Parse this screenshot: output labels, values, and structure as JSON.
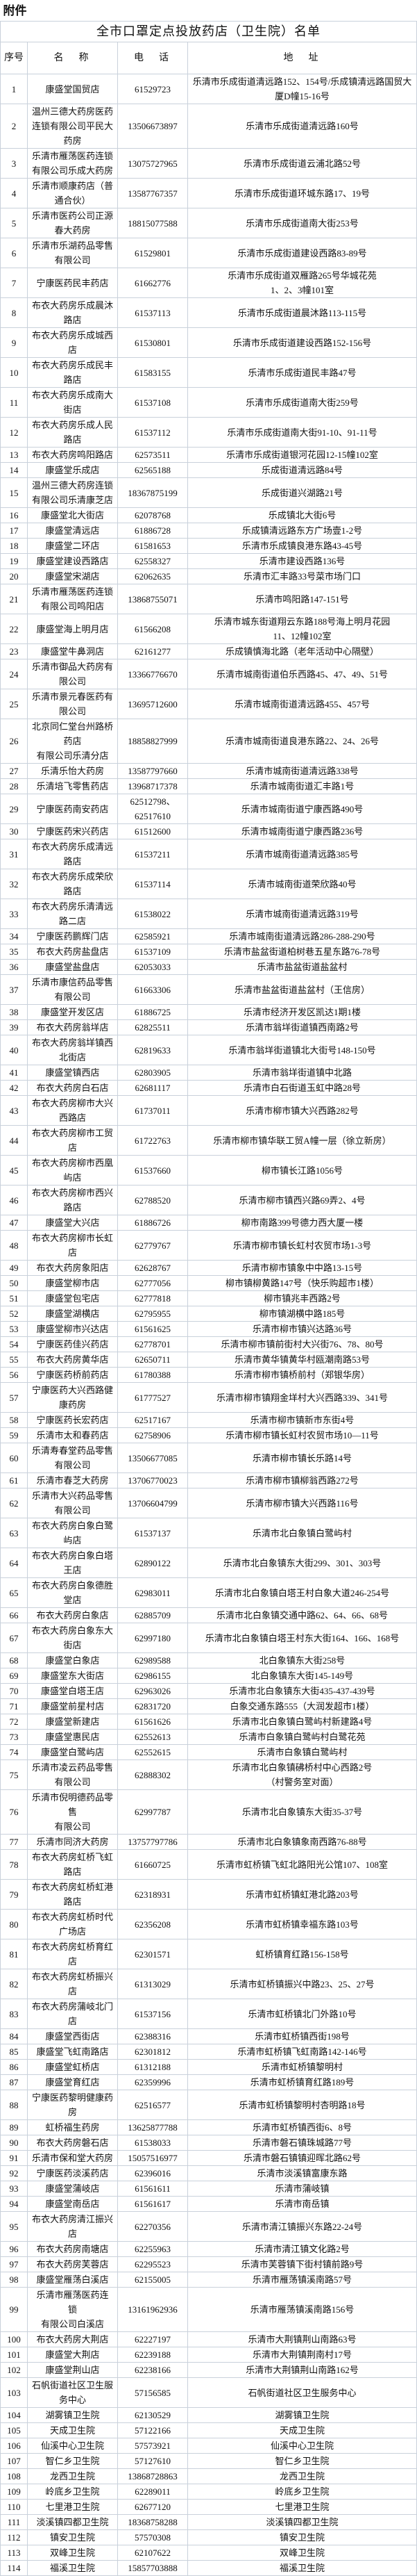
{
  "attachment_label": "附件",
  "title": "全市口罩定点投放药店（卫生院）名单",
  "headers": {
    "no": "序号",
    "name": "名　称",
    "phone": "电　话",
    "address": "地　址"
  },
  "rows": [
    [
      "1",
      "康盛堂国贸店",
      "61529723",
      "乐清市乐成街道清远路152、154号/乐成镇清远路国贸大厦D幢15-16号"
    ],
    [
      "2",
      "温州三德大药房医药连锁有限公司平民大药房",
      "13506673897",
      "乐清市乐成街道清远路160号"
    ],
    [
      "3",
      "乐清市雁荡医药连锁有限公司乐成大药房",
      "13075727965",
      "乐清市乐成街道云浦北路52号"
    ],
    [
      "4",
      "乐清市顺康药店（普通合伙）",
      "13587767357",
      "乐清市乐成街道环城东路17、19号"
    ],
    [
      "5",
      "乐清市医药公司正源春大药房",
      "18815077588",
      "乐清市乐成街道南大街253号"
    ],
    [
      "6",
      "乐清市乐湖药品零售有限公司",
      "61529801",
      "乐清市乐成街道建设西路83-89号"
    ],
    [
      "7",
      "宁康医药民丰药店",
      "61662776",
      "乐清市乐成街道双雁路265号华城花苑\n1、2、3幢101室"
    ],
    [
      "8",
      "布衣大药房乐成晨沐路店",
      "61537113",
      "乐清市乐成街道晨沐路113-115号"
    ],
    [
      "9",
      "布衣大药房乐成城西店",
      "61530801",
      "乐清市乐成街道建设西路152-156号"
    ],
    [
      "10",
      "布衣大药房乐成民丰路店",
      "61583155",
      "乐清市乐成街道民丰路47号"
    ],
    [
      "11",
      "布衣大药房乐成南大街店",
      "61537108",
      "乐清市乐成街道南大街259号"
    ],
    [
      "12",
      "布衣大药房乐成人民路店",
      "61537112",
      "乐清市乐成街道南大街91-10、91-11号"
    ],
    [
      "13",
      "布衣大药房鸣阳路店",
      "62573511",
      "乐清市乐成街道银河花园12-15幢102室"
    ],
    [
      "14",
      "康盛堂乐成店",
      "62565188",
      "乐成街道清远路84号"
    ],
    [
      "15",
      "温州三德大药房连锁有限公司乐清康芝店",
      "18367875199",
      "乐成街道兴湖路21号"
    ],
    [
      "16",
      "康盛堂北大街店",
      "62078768",
      "乐成镇北大街6号"
    ],
    [
      "17",
      "康盛堂清远店",
      "61886728",
      "乐成镇清远路东方广场壹1-2号"
    ],
    [
      "18",
      "康盛堂二环店",
      "61581653",
      "乐清市乐成镇良港东路43-45号"
    ],
    [
      "19",
      "康盛堂建设西路店",
      "62558327",
      "乐清市建设西路136号"
    ],
    [
      "20",
      "康盛堂宋湖店",
      "62062635",
      "乐清市汇丰路33号菜市场门口"
    ],
    [
      "21",
      "乐清市雁荡医药连锁有限公司鸣阳店",
      "13868755071",
      "乐清市鸣阳路147-151号"
    ],
    [
      "22",
      "康盛堂海上明月店",
      "61566208",
      "乐清市城东街道翔云东路188号海上明月花园\n11、12幢102室"
    ],
    [
      "23",
      "康盛堂牛鼻洞店",
      "62161277",
      "乐成镇慎海北路（老年活动中心隔壁）"
    ],
    [
      "24",
      "乐清市御品大药房有限公司",
      "13366776670",
      "乐清市城南街道伯乐西路45、47、49、51号"
    ],
    [
      "25",
      "乐清市景元春医药有限公司",
      "13695712600",
      "乐清市城南街道清远路455、457号"
    ],
    [
      "26",
      "北京同仁堂台州路桥药店\n有限公司乐清分店",
      "18858827999",
      "乐清市城南街道良港东路22、24、26号"
    ],
    [
      "27",
      "乐清乐怡大药房",
      "13587797660",
      "乐清市城南街道清远路338号"
    ],
    [
      "28",
      "乐清培飞零售药店",
      "13968717378",
      "乐清市城南街道汇丰路1号"
    ],
    [
      "29",
      "宁康医药南安药店",
      "62512798、\n62517610",
      "乐清市城南街道宁康西路490号"
    ],
    [
      "30",
      "宁康医药宋兴药店",
      "61512600",
      "乐清市城南街道宁康西路236号"
    ],
    [
      "31",
      "布衣大药房乐成清远路店",
      "61537211",
      "乐清市城南街道清远路385号"
    ],
    [
      "32",
      "布衣大药房乐成荣欣路店",
      "61537114",
      "乐清市城南街道荣欣路40号"
    ],
    [
      "33",
      "布衣大药房乐清清远路二店",
      "61538022",
      "乐清市城南街道清远路319号"
    ],
    [
      "34",
      "宁康医药鹏辉门店",
      "62585921",
      "乐清市城南街道清远路286-288-290号"
    ],
    [
      "35",
      "布衣大药房盐盘店",
      "61537109",
      "乐清市盐盆街道柏树巷五星东路76-78号"
    ],
    [
      "36",
      "康盛堂盐盘店",
      "62053033",
      "乐清市盐盆街道盐盆村"
    ],
    [
      "37",
      "乐清市康信药品零售有限公司",
      "61663306",
      "乐清市盐盆街道盐盆村（王信房）"
    ],
    [
      "38",
      "康盛堂开发区店",
      "61886725",
      "乐清市经济开发区凯达1期1楼"
    ],
    [
      "39",
      "布衣大药房翁垟店",
      "62825511",
      "乐清市翁垟街道镇西南路2号"
    ],
    [
      "40",
      "布衣大药房翁垟镇西北街店",
      "62819633",
      "乐清市翁垟街道镇北大街号148-150号"
    ],
    [
      "41",
      "康盛堂镇西店",
      "62803905",
      "乐清市翁垟街道镇中北路"
    ],
    [
      "42",
      "布衣大药房白石店",
      "62681117",
      "乐清市白石街道玉虹中路28号"
    ],
    [
      "43",
      "布衣大药房柳市大兴西路店",
      "61737011",
      "乐清市柳市镇大兴西路282号"
    ],
    [
      "44",
      "布衣大药房柳市工贸店",
      "61722763",
      "乐清市柳市镇华联工贸A幢一层（徐立新房）"
    ],
    [
      "45",
      "布衣大药房柳市西凰屿店",
      "61537660",
      "柳市镇长江路1056号"
    ],
    [
      "46",
      "布衣大药房柳市西兴路店",
      "62788520",
      "乐清市柳市镇西兴路69弄2、4号"
    ],
    [
      "47",
      "康盛堂大兴店",
      "61886726",
      "柳市南路399号德力西大厦一楼"
    ],
    [
      "48",
      "布衣大药房柳市长虹店",
      "62779767",
      "乐清市柳市镇长虹村农贸市场1-3号"
    ],
    [
      "49",
      "布衣大药房象阳店",
      "62628767",
      "乐清市柳市镇象中中路13-15号"
    ],
    [
      "50",
      "康盛堂柳市店",
      "62777056",
      "柳市镇柳黄路147号（快乐购超市1楼）"
    ],
    [
      "51",
      "康盛堂包宅店",
      "62777818",
      "柳市镇兆丰西路2号"
    ],
    [
      "52",
      "康盛堂湖横店",
      "62795955",
      "柳市镇湖横中路185号"
    ],
    [
      "53",
      "康盛堂柳市兴达店",
      "61561625",
      "乐清市柳市镇兴达路36号"
    ],
    [
      "54",
      "宁康医药佳兴药店",
      "62778701",
      "乐清市柳市镇前街村大兴街76、78、80号"
    ],
    [
      "55",
      "布衣大药房黄华店",
      "62650711",
      "乐清市黄华镇黄华村瓯潮南路53号"
    ],
    [
      "56",
      "宁康医药桥前药店",
      "61780388",
      "乐清市柳市镇桥前村（郑银华房）"
    ],
    [
      "57",
      "宁康医药大兴西路健康药房",
      "61777527",
      "乐清市柳市镇翔金垟村大兴西路339、341号"
    ],
    [
      "58",
      "宁康医药长宏药店",
      "62517167",
      "乐清市柳市镇新市东街4号"
    ],
    [
      "59",
      "乐清市太和春药店",
      "62758906",
      "乐清市柳市镇长虹村农贸市场10—11号"
    ],
    [
      "60",
      "乐清寿春堂药品零售有限公司",
      "13506677085",
      "乐清市柳市镇长乐路14号"
    ],
    [
      "61",
      "乐清市春芝大药房",
      "13706770023",
      "乐清市柳市镇柳翁西路272号"
    ],
    [
      "62",
      "乐清市大兴药品零售有限公司",
      "13706604799",
      "乐清市柳市镇大兴西路116号"
    ],
    [
      "63",
      "布衣大药房白象白鹭屿店",
      "61537137",
      "乐清市北白象镇白鹭屿村"
    ],
    [
      "64",
      "布衣大药房白象白塔王店",
      "62890122",
      "乐清市北白象镇东大街299、301、303号"
    ],
    [
      "65",
      "布衣大药房白象德胜堂店",
      "62983011",
      "乐清市北白象镇白塔王村白象大道246-254号"
    ],
    [
      "66",
      "布衣大药房白象店",
      "62885709",
      "乐清市北白象镇交通中路62、64、66、68号"
    ],
    [
      "67",
      "布衣大药房白象东大街店",
      "62997180",
      "乐清市北白象镇白塔王村东大街164、166、168号"
    ],
    [
      "68",
      "康盛堂白象店",
      "62989588",
      "北白象镇东大街258号"
    ],
    [
      "69",
      "康盛堂东大街店",
      "62986155",
      "北白象镇东大街145-149号"
    ],
    [
      "70",
      "康盛堂白塔王店",
      "62963026",
      "乐清市北白象镇东大街435-437-439号"
    ],
    [
      "71",
      "康盛堂前星村店",
      "62831720",
      "白象交通东路555（大润发超市1楼）"
    ],
    [
      "72",
      "康盛堂新建店",
      "61561626",
      "乐清市北白象镇白鹭屿村新建路4号"
    ],
    [
      "73",
      "康盛堂惠民店",
      "62552613",
      "乐清市白象镇白鹭屿村白鹭花苑"
    ],
    [
      "74",
      "康盛堂白鹭屿店",
      "62552615",
      "乐清市白象镇白鹭屿村"
    ],
    [
      "75",
      "乐清市凌云药品零售有限公司",
      "62888302",
      "乐清市北白象镇砩桥村中心西路2号\n（村警务室对面）"
    ],
    [
      "76",
      "乐清市倪明德药品零售\n有限公司",
      "62997787",
      "乐清市北白象镇东大街35-37号"
    ],
    [
      "77",
      "乐清市同济大药房",
      "13757797786",
      "乐清市北白象镇象南西路76-88号"
    ],
    [
      "78",
      "布衣大药房虹桥飞虹路店",
      "61660725",
      "乐清市虹桥镇飞虹北路阳光公馆107、108室"
    ],
    [
      "79",
      "布衣大药房虹桥虹港路店",
      "62318931",
      "乐清市虹桥镇虹港北路203号"
    ],
    [
      "80",
      "布衣大药房虹桥时代广场店",
      "62356208",
      "乐清市虹桥镇幸福东路103号"
    ],
    [
      "81",
      "布衣大药房虹桥育红店",
      "62301571",
      "虹桥镇育红路156-158号"
    ],
    [
      "82",
      "布衣大药房虹桥振兴店",
      "61313029",
      "乐清市虹桥镇振兴中路23、25、27号"
    ],
    [
      "83",
      "布衣大药房蒲岐北门店",
      "61537156",
      "乐清市虹桥镇北门外路10号"
    ],
    [
      "84",
      "康盛堂西街店",
      "62388316",
      "乐清市虹桥镇西街198号"
    ],
    [
      "85",
      "康盛堂飞虹南路店",
      "62301812",
      "乐清市虹桥镇飞虹南路142-146号"
    ],
    [
      "86",
      "康盛堂虹桥店",
      "61312188",
      "乐清市虹桥镇黎明村"
    ],
    [
      "87",
      "康盛堂育红店",
      "62359996",
      "乐清市虹桥镇育红路189号"
    ],
    [
      "88",
      "宁康医药黎明健康药房",
      "62516577",
      "乐清市虹桥镇黎明村杏明路18号"
    ],
    [
      "89",
      "虹桥福生药房",
      "13625877788",
      "乐清市虹桥镇西街6、8号"
    ],
    [
      "90",
      "布衣大药房磐石店",
      "61538033",
      "乐清市磐石镇珠城路77号"
    ],
    [
      "91",
      "乐清市保和堂大药房",
      "15057516977",
      "乐清市磐石镇镇迎晖北路62号"
    ],
    [
      "92",
      "宁康医药淡溪药店",
      "62396016",
      "乐清市淡溪镇富康东路"
    ],
    [
      "93",
      "康盛堂蒲岐店",
      "61561611",
      "乐清市蒲岐镇"
    ],
    [
      "94",
      "康盛堂南岳店",
      "61561617",
      "乐清市南岳镇"
    ],
    [
      "95",
      "布衣大药房清江振兴店",
      "62270356",
      "乐清市清江镇振兴东路22-24号"
    ],
    [
      "96",
      "布衣大药房南塘店",
      "62255963",
      "乐清市清江镇文化路2号"
    ],
    [
      "97",
      "布衣大药房芙蓉店",
      "62295523",
      "乐清市芙蓉镇下街村镇前路9号"
    ],
    [
      "98",
      "康盛堂雁荡白溪店",
      "62155005",
      "乐清市雁荡镇溪南路57号"
    ],
    [
      "99",
      "乐清市雁荡医药连\n锁\n有限公司白溪店",
      "13161962936",
      "乐清市雁荡镇溪南路156号"
    ],
    [
      "100",
      "布衣大药房大荆店",
      "62227197",
      "乐清市大荆镇荆山南路63号"
    ],
    [
      "101",
      "康盛堂大荆店",
      "62239188",
      "乐清市大荆镇荆南村17号"
    ],
    [
      "102",
      "康盛堂荆山店",
      "62238166",
      "乐清市大荆镇荆山南路162号"
    ],
    [
      "103",
      "石帆街道社区卫生服务中心",
      "57156585",
      "石帆街道社区卫生服务中心"
    ],
    [
      "104",
      "湖雾镇卫生院",
      "62130529",
      "湖雾镇卫生院"
    ],
    [
      "105",
      "天成卫生院",
      "57122166",
      "天成卫生院"
    ],
    [
      "106",
      "仙溪中心卫生院",
      "57573921",
      "仙溪中心卫生院"
    ],
    [
      "107",
      "智仁乡卫生院",
      "57127610",
      "智仁乡卫生院"
    ],
    [
      "108",
      "龙西卫生院",
      "13868728863",
      "龙西卫生院"
    ],
    [
      "109",
      "岭底乡卫生院",
      "62289011",
      "岭底乡卫生院"
    ],
    [
      "110",
      "七里港卫生院",
      "62677120",
      "七里港卫生院"
    ],
    [
      "111",
      "淡溪镇四都卫生院",
      "18368758288",
      "淡溪镇四都卫生院"
    ],
    [
      "112",
      "镇安卫生院",
      "57570308",
      "镇安卫生院"
    ],
    [
      "113",
      "双峰卫生院",
      "62107622",
      "双峰卫生院"
    ],
    [
      "114",
      "福溪卫生院",
      "15857703888",
      "福溪卫生院"
    ]
  ]
}
